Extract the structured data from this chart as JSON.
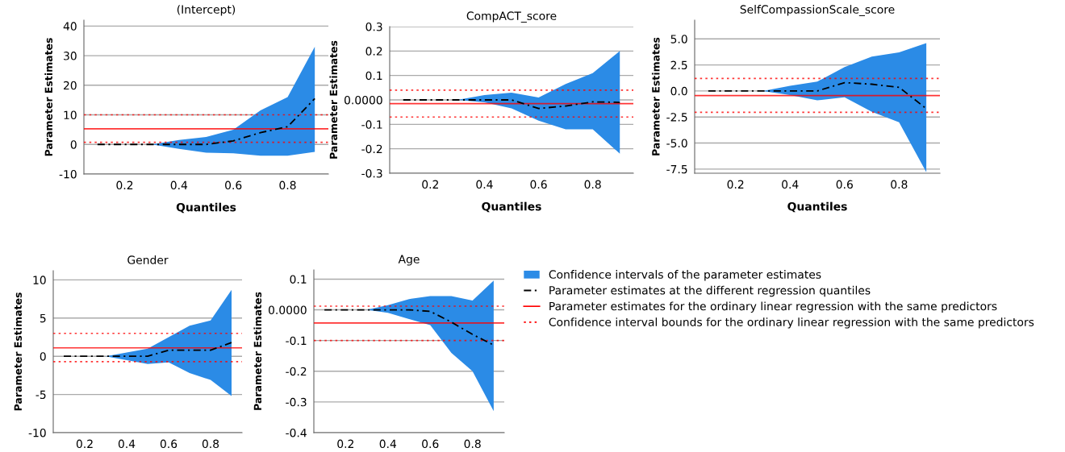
{
  "chart_data": [
    {
      "type": "line",
      "title": "(Intercept)",
      "xlabel": "Quantiles",
      "ylabel": "Parameter Estimates",
      "x": [
        0.1,
        0.2,
        0.3,
        0.4,
        0.5,
        0.6,
        0.7,
        0.8,
        0.9
      ],
      "xlim": [
        0.05,
        0.95
      ],
      "xticks": [
        0.2,
        0.4,
        0.6,
        0.8
      ],
      "ylim": [
        -10,
        42
      ],
      "yticks": [
        -10,
        0,
        10,
        20,
        30,
        40
      ],
      "grid": "y",
      "line_style": "dashed",
      "series": [
        {
          "color": "#000000",
          "values": [
            0,
            0,
            0,
            0,
            0,
            1.2,
            4,
            6,
            15.5
          ],
          "lower": [
            0,
            0,
            0,
            -1.5,
            -2.8,
            -3,
            -3.8,
            -3.8,
            -2.5
          ],
          "upper": [
            0,
            0,
            0,
            1.5,
            2.5,
            5,
            11.5,
            16,
            33
          ]
        }
      ],
      "ref_lines": [
        {
          "axis": "y",
          "value": 5.3,
          "color": "#ff0000",
          "line_style": "solid"
        },
        {
          "axis": "y",
          "value": 0.7,
          "color": "#ff0000",
          "line_style": "dotted"
        },
        {
          "axis": "y",
          "value": 10,
          "color": "#ff0000",
          "line_style": "dotted"
        }
      ]
    },
    {
      "type": "line",
      "title": "CompACT_score",
      "xlabel": "Quantiles",
      "ylabel": "Parameter Estimates",
      "x": [
        0.1,
        0.2,
        0.3,
        0.4,
        0.5,
        0.6,
        0.7,
        0.8,
        0.9
      ],
      "xlim": [
        0.05,
        0.95
      ],
      "xticks": [
        0.2,
        0.4,
        0.6,
        0.8
      ],
      "ylim": [
        -0.3,
        0.3
      ],
      "yticks": [
        -0.3,
        -0.2,
        -0.1,
        {
          "value": 0,
          "label": "0.0000"
        },
        0.1,
        0.2,
        0.3
      ],
      "grid": "y",
      "line_style": "dashed",
      "series": [
        {
          "color": "#000000",
          "values": [
            0,
            0,
            0,
            0,
            0,
            -0.035,
            -0.025,
            -0.008,
            -0.01
          ],
          "lower": [
            0,
            0,
            0,
            -0.01,
            -0.035,
            -0.085,
            -0.12,
            -0.12,
            -0.22
          ],
          "upper": [
            0,
            0,
            0,
            0.02,
            0.03,
            0.01,
            0.065,
            0.11,
            0.2
          ]
        }
      ],
      "ref_lines": [
        {
          "axis": "y",
          "value": -0.015,
          "color": "#ff0000",
          "line_style": "solid"
        },
        {
          "axis": "y",
          "value": -0.07,
          "color": "#ff0000",
          "line_style": "dotted"
        },
        {
          "axis": "y",
          "value": 0.04,
          "color": "#ff0000",
          "line_style": "dotted"
        }
      ]
    },
    {
      "type": "line",
      "title": "SelfCompassionScale_score",
      "xlabel": "Quantiles",
      "ylabel": "Parameter Estimates",
      "x": [
        0.1,
        0.2,
        0.3,
        0.4,
        0.5,
        0.6,
        0.7,
        0.8,
        0.9
      ],
      "xlim": [
        0.05,
        0.95
      ],
      "xticks": [
        0.2,
        0.4,
        0.6,
        0.8
      ],
      "ylim": [
        -7.9,
        6.8
      ],
      "yticks": [
        {
          "value": -7.5,
          "label": "-7.5"
        },
        {
          "value": -5,
          "label": "-5.0"
        },
        {
          "value": -2.5,
          "label": "-2.5"
        },
        {
          "value": 0,
          "label": "0.0"
        },
        {
          "value": 2.5,
          "label": "2.5"
        },
        {
          "value": 5,
          "label": "5.0"
        }
      ],
      "grid": "y",
      "line_style": "dashed",
      "series": [
        {
          "color": "#000000",
          "values": [
            0,
            0,
            0,
            0,
            0,
            0.8,
            0.65,
            0.35,
            -1.7
          ],
          "lower": [
            0,
            0,
            0,
            -0.4,
            -0.9,
            -0.6,
            -2,
            -3,
            -7.8
          ],
          "upper": [
            0,
            0,
            0,
            0.5,
            0.9,
            2.3,
            3.3,
            3.7,
            4.6
          ]
        }
      ],
      "ref_lines": [
        {
          "axis": "y",
          "value": -0.45,
          "color": "#ff0000",
          "line_style": "solid"
        },
        {
          "axis": "y",
          "value": -2.05,
          "color": "#ff0000",
          "line_style": "dotted"
        },
        {
          "axis": "y",
          "value": 1.2,
          "color": "#ff0000",
          "line_style": "dotted"
        }
      ]
    },
    {
      "type": "line",
      "title": "Gender",
      "ylabel": "Parameter Estimates",
      "x": [
        0.1,
        0.2,
        0.3,
        0.4,
        0.5,
        0.6,
        0.7,
        0.8,
        0.9
      ],
      "xlim": [
        0.05,
        0.95
      ],
      "xticks": [
        0.2,
        0.4,
        0.6,
        0.8
      ],
      "ylim": [
        -10,
        11.2
      ],
      "yticks": [
        -10,
        -5,
        0,
        5,
        10
      ],
      "grid": "y",
      "line_style": "dashed",
      "series": [
        {
          "color": "#000000",
          "values": [
            0,
            0,
            0,
            0,
            0,
            0.8,
            0.8,
            0.8,
            1.8
          ],
          "lower": [
            0,
            0,
            0,
            -0.5,
            -1,
            -0.8,
            -2.2,
            -3.1,
            -5.2
          ],
          "upper": [
            0,
            0,
            0,
            0.5,
            1,
            2.5,
            4,
            4.7,
            8.7
          ]
        }
      ],
      "ref_lines": [
        {
          "axis": "y",
          "value": 1.1,
          "color": "#ff0000",
          "line_style": "solid"
        },
        {
          "axis": "y",
          "value": -0.7,
          "color": "#ff0000",
          "line_style": "dotted"
        },
        {
          "axis": "y",
          "value": 3.0,
          "color": "#ff0000",
          "line_style": "dotted"
        }
      ]
    },
    {
      "type": "line",
      "title": "Age",
      "ylabel": "Parameter Estimates",
      "x": [
        0.1,
        0.2,
        0.3,
        0.4,
        0.5,
        0.6,
        0.7,
        0.8,
        0.9
      ],
      "xlim": [
        0.05,
        0.95
      ],
      "xticks": [
        0.2,
        0.4,
        0.6,
        0.8
      ],
      "ylim": [
        -0.4,
        0.13
      ],
      "yticks": [
        -0.4,
        -0.3,
        -0.2,
        -0.1,
        {
          "value": 0,
          "label": "0.0000"
        },
        0.1
      ],
      "grid": "y",
      "line_style": "dashed",
      "legend": "right",
      "annotations": [
        "Confidence intervals of the parameter estimates"
      ],
      "series": [
        {
          "name": "Parameter estimates at the different regression quantiles",
          "color": "#000000",
          "values": [
            0,
            0,
            0,
            0,
            0,
            -0.005,
            -0.04,
            -0.08,
            -0.115
          ],
          "lower": [
            0,
            0,
            0,
            -0.01,
            -0.03,
            -0.05,
            -0.14,
            -0.2,
            -0.33
          ],
          "upper": [
            0,
            0,
            0,
            0.015,
            0.035,
            0.045,
            0.045,
            0.03,
            0.095
          ]
        }
      ],
      "ref_lines": [
        {
          "axis": "y",
          "value": -0.043,
          "label": "Parameter estimates for the ordinary linear regression with the same predictors",
          "color": "#ff0000",
          "line_style": "solid"
        },
        {
          "axis": "y",
          "value": -0.1,
          "label": "Confidence interval bounds for the ordinary linear regression with the same predictors",
          "color": "#ff0000",
          "line_style": "dotted"
        },
        {
          "axis": "y",
          "value": 0.012,
          "color": "#ff0000",
          "line_style": "dotted"
        }
      ]
    }
  ]
}
